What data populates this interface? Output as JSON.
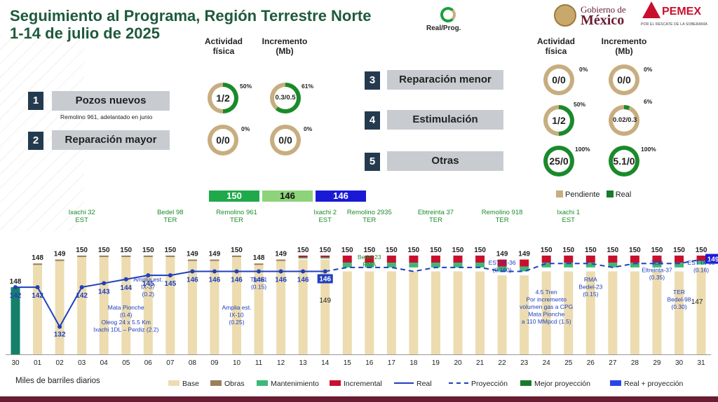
{
  "header": {
    "title_line1": "Seguimiento al Programa, Región Terrestre Norte",
    "title_line2": "1-14 de julio de 2025",
    "real_prog_label": "Real/Prog.",
    "logo_gob_line1": "Gobierno de",
    "logo_gob_line2": "México",
    "logo_pemex": "PEMEX",
    "logo_pemex_tagline": "POR EL RESCATE DE LA SOBERANÍA"
  },
  "columns": {
    "actividad": "Actividad física",
    "incremento": "Incremento (Mb)"
  },
  "categories": [
    {
      "num": "1",
      "label": "Pozos nuevos",
      "note": "Remolino 961, adelantado en junio",
      "act_value": "1/2",
      "act_pct": "50%",
      "act_frac": 0.5,
      "inc_value": "0.3/0.5",
      "inc_pct": "61%",
      "inc_frac": 0.61
    },
    {
      "num": "2",
      "label": "Reparación mayor",
      "note": "",
      "act_value": "0/0",
      "act_pct": "0%",
      "act_frac": 0,
      "inc_value": "0/0",
      "inc_pct": "0%",
      "inc_frac": 0
    },
    {
      "num": "3",
      "label": "Reparación menor",
      "note": "",
      "act_value": "0/0",
      "act_pct": "0%",
      "act_frac": 0,
      "inc_value": "0/0",
      "inc_pct": "0%",
      "inc_frac": 0
    },
    {
      "num": "4",
      "label": "Estimulación",
      "note": "",
      "act_value": "1/2",
      "act_pct": "50%",
      "act_frac": 0.5,
      "inc_value": "0.02/0.3",
      "inc_pct": "6%",
      "inc_frac": 0.06
    },
    {
      "num": "5",
      "label": "Otras",
      "note": "",
      "act_value": "25/0",
      "act_pct": "100%",
      "act_frac": 1,
      "inc_value": "5.1/0",
      "inc_pct": "100%",
      "inc_frac": 1
    }
  ],
  "legend_top": {
    "pendiente": "Pendiente",
    "real": "Real"
  },
  "summary_boxes": [
    {
      "value": "150",
      "color": "#1fa94a",
      "text_color": "#ffffff"
    },
    {
      "value": "146",
      "color": "#8dd37a",
      "text_color": "#111111"
    },
    {
      "value": "146",
      "color": "#1a1ad6",
      "text_color": "#ffffff"
    }
  ],
  "colors": {
    "base": "#ecdcb0",
    "obras": "#9b7f5a",
    "mantenimiento": "#3cb878",
    "incremental": "#c8102e",
    "real": "#1f3fbf",
    "proyeccion": "#1f3fbf",
    "mejor_proyeccion": "#1a7a2a",
    "real_proyeccion": "#2846e8",
    "first_bar": "#15806a",
    "donut_real": "#1a8a2a",
    "donut_pend": "#c8ad7f"
  },
  "chart_data": {
    "type": "bar",
    "ylabel": "Miles de barriles diarios",
    "categories": [
      "30",
      "01",
      "02",
      "03",
      "04",
      "05",
      "06",
      "07",
      "08",
      "09",
      "10",
      "11",
      "12",
      "13",
      "14",
      "15",
      "16",
      "17",
      "18",
      "19",
      "20",
      "21",
      "22",
      "23",
      "24",
      "25",
      "26",
      "27",
      "28",
      "29",
      "30",
      "31"
    ],
    "totals": [
      "148",
      "148",
      "149",
      "150",
      "150",
      "150",
      "150",
      "150",
      "149",
      "149",
      "150",
      "148",
      "149",
      "150",
      "150",
      "150",
      "150",
      "150",
      "150",
      "150",
      "150",
      "150",
      "149",
      "149",
      "150",
      "150",
      "150",
      "150",
      "150",
      "150",
      "150",
      "150"
    ],
    "base": [
      142,
      148,
      149,
      150,
      150,
      150,
      150,
      150,
      149,
      149,
      150,
      148,
      149,
      149,
      149,
      146,
      146,
      146,
      146,
      146,
      146,
      146,
      145,
      145,
      146,
      146,
      146,
      146,
      146,
      146,
      146,
      147
    ],
    "incremental": [
      0,
      0,
      0,
      0,
      0,
      0,
      0,
      0,
      0,
      0,
      0,
      0,
      0,
      1,
      1,
      4,
      4,
      4,
      4,
      4,
      4,
      4,
      4,
      4,
      4,
      4,
      4,
      4,
      4,
      4,
      4,
      3
    ],
    "real": [
      142,
      142,
      132,
      142,
      143,
      144,
      145,
      145,
      146,
      146,
      146,
      146,
      146,
      146,
      146
    ],
    "real_labels": [
      "142",
      "142",
      "132",
      "142",
      "143",
      "144",
      "145",
      "145",
      "146",
      "146",
      "146",
      "146",
      "146",
      "146",
      "146"
    ],
    "proyeccion": [
      null,
      null,
      null,
      null,
      null,
      null,
      null,
      null,
      null,
      null,
      null,
      null,
      null,
      null,
      146,
      147,
      147,
      147,
      146,
      147,
      147,
      147,
      146,
      146,
      148,
      148,
      148,
      147,
      148,
      148,
      148,
      149
    ],
    "end_label": "149",
    "bar_inner_label": "149",
    "bar_inner_label_2": "147",
    "ylim": [
      125,
      153
    ],
    "annotations_above": [
      {
        "day_index": 3,
        "text": "Ixachi 32\nEST"
      },
      {
        "day_index": 7,
        "text": "Bedel 98\nTER"
      },
      {
        "day_index": 10,
        "text": "Remolino 961\nTER"
      },
      {
        "day_index": 14,
        "text": "Ixachi 2\nEST"
      },
      {
        "day_index": 16,
        "text": "Remolino 2935\nTER"
      },
      {
        "day_index": 19,
        "text": "Ebtreinta 37\nTER"
      },
      {
        "day_index": 22,
        "text": "Remolino 918\nTER"
      },
      {
        "day_index": 25,
        "text": "Ixachi 1\nEST"
      }
    ],
    "annotations_inside": [
      {
        "day_index": 5,
        "text": "Mata Pionche\n(0.4)\nOleog 24 x 5.5 Km\nIxachi 1DL – Perdiz (2.2)",
        "color": "#1f3fbf"
      },
      {
        "day_index": 6,
        "text": "Amplia est.\nIX-37\n(0.2)",
        "color": "#1f3fbf"
      },
      {
        "day_index": 10,
        "text": "Amplia est.\nIX-10\n(0.25)",
        "color": "#1f3fbf"
      },
      {
        "day_index": 11,
        "text": "Tum-1\n(0.15)",
        "color": "#1f3fbf"
      },
      {
        "day_index": 16,
        "text": "Bedel 23\nRMA",
        "color": "#1a8a2a"
      },
      {
        "day_index": 22,
        "text": "EST IX-36\n(0.160)",
        "color": "#1f3fbf"
      },
      {
        "day_index": 24,
        "text": "4.5 Tren\nPor incremento\nvolumen gas a CPG\nMata Pionche\na 110 MMpcd (1.5)",
        "color": "#1f3fbf"
      },
      {
        "day_index": 26,
        "text": "RMA\nBedel-23\n(0.15)",
        "color": "#1f3fbf"
      },
      {
        "day_index": 29,
        "text": "TER\nEltreinta-37\n(0.35)",
        "color": "#1f3fbf"
      },
      {
        "day_index": 30,
        "text": "TER\nBedel-98\n(0.30)",
        "color": "#1f3fbf"
      },
      {
        "day_index": 31,
        "text": "EST IX-60\n(0.16)",
        "color": "#1f3fbf"
      }
    ],
    "legend": [
      "Base",
      "Obras",
      "Mantenimiento",
      "Incremental",
      "Real",
      "Proyección",
      "Mejor proyección",
      "Real + proyección"
    ]
  }
}
